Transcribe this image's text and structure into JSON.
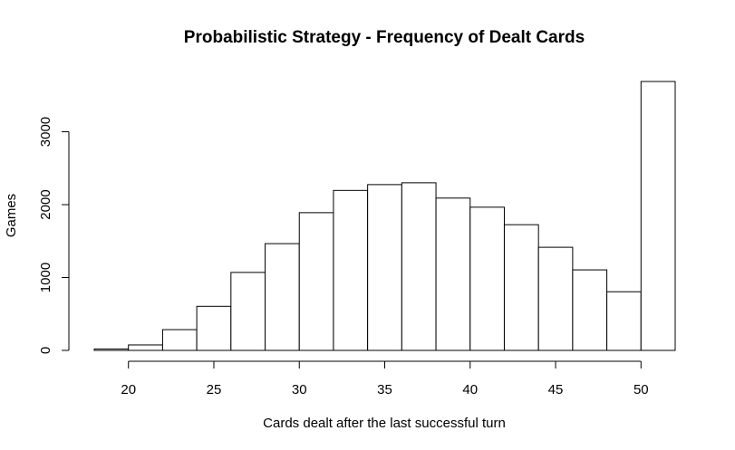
{
  "chart_data": {
    "type": "bar",
    "title": "Probabilistic Strategy - Frequency of Dealt Cards",
    "xlabel": "Cards dealt after the last successful turn",
    "ylabel": "Games",
    "bins": [
      {
        "x0": 18,
        "x1": 20,
        "count": 20
      },
      {
        "x0": 20,
        "x1": 22,
        "count": 75
      },
      {
        "x0": 22,
        "x1": 24,
        "count": 285
      },
      {
        "x0": 24,
        "x1": 26,
        "count": 605
      },
      {
        "x0": 26,
        "x1": 28,
        "count": 1070
      },
      {
        "x0": 28,
        "x1": 30,
        "count": 1465
      },
      {
        "x0": 30,
        "x1": 32,
        "count": 1890
      },
      {
        "x0": 32,
        "x1": 34,
        "count": 2195
      },
      {
        "x0": 34,
        "x1": 36,
        "count": 2275
      },
      {
        "x0": 36,
        "x1": 38,
        "count": 2300
      },
      {
        "x0": 38,
        "x1": 40,
        "count": 2090
      },
      {
        "x0": 40,
        "x1": 42,
        "count": 1965
      },
      {
        "x0": 42,
        "x1": 44,
        "count": 1725
      },
      {
        "x0": 44,
        "x1": 46,
        "count": 1415
      },
      {
        "x0": 46,
        "x1": 48,
        "count": 1105
      },
      {
        "x0": 48,
        "x1": 50,
        "count": 805
      },
      {
        "x0": 50,
        "x1": 52,
        "count": 3690
      }
    ],
    "xlim": [
      18,
      52
    ],
    "ylim": [
      0,
      3690
    ],
    "xticks": [
      20,
      25,
      30,
      35,
      40,
      45,
      50
    ],
    "yticks": [
      0,
      1000,
      2000,
      3000
    ],
    "grid": false,
    "legend": "none"
  }
}
